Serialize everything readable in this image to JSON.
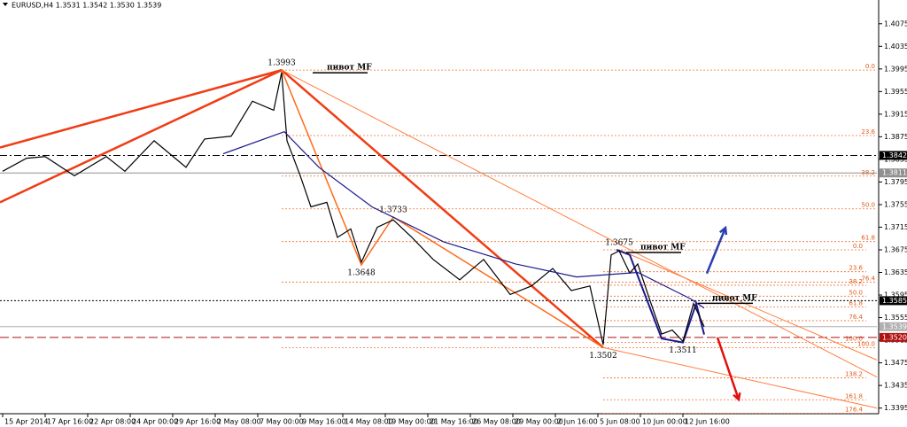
{
  "chart_data": {
    "type": "line",
    "title": "EURUSD,H4 1.3531 1.3542 1.3530 1.3539",
    "xlim": [
      -1,
      329
    ],
    "ylim": [
      1.3385,
      1.4117
    ],
    "xticks": [
      {
        "value": 0,
        "label": "15 Apr 2014"
      },
      {
        "value": 16,
        "label": "17 Apr 16:00"
      },
      {
        "value": 32,
        "label": "22 Apr 08:00"
      },
      {
        "value": 48,
        "label": "24 Apr 00:00"
      },
      {
        "value": 64,
        "label": "29 Apr 16:00"
      },
      {
        "value": 80,
        "label": "2 May 08:00"
      },
      {
        "value": 96,
        "label": "7 May 00:00"
      },
      {
        "value": 112,
        "label": "9 May 16:00"
      },
      {
        "value": 128,
        "label": "14 May 08:00"
      },
      {
        "value": 144,
        "label": "19 May 00:00"
      },
      {
        "value": 160,
        "label": "21 May 16:00"
      },
      {
        "value": 176,
        "label": "26 May 08:00"
      },
      {
        "value": 192,
        "label": "29 May 00:00"
      },
      {
        "value": 208,
        "label": "2 Jun 16:00"
      },
      {
        "value": 224,
        "label": "5 Jun 08:00"
      },
      {
        "value": 240,
        "label": "10 Jun 00:00"
      },
      {
        "value": 256,
        "label": "12 Jun 16:00"
      }
    ],
    "yticks": [
      1.4075,
      1.4035,
      1.3995,
      1.3955,
      1.3915,
      1.3875,
      1.3835,
      1.3795,
      1.3755,
      1.3715,
      1.3675,
      1.3635,
      1.3595,
      1.3555,
      1.3515,
      1.3475,
      1.3435,
      1.3395
    ],
    "series": [
      {
        "color": "#000000",
        "x": [
          0,
          9,
          16,
          27,
          39,
          46,
          57,
          69,
          76,
          86,
          94,
          102,
          105,
          107,
          112,
          116,
          122,
          126,
          131,
          135,
          141,
          147,
          154,
          162,
          172,
          181,
          191,
          199,
          207,
          214,
          221,
          226,
          229,
          232,
          236,
          239,
          244,
          248,
          252,
          256,
          260,
          264
        ],
        "values": [
          1.3814,
          1.3837,
          1.384,
          1.3806,
          1.384,
          1.3814,
          1.3868,
          1.3821,
          1.3871,
          1.3876,
          1.3938,
          1.3922,
          1.3989,
          1.3868,
          1.3806,
          1.3751,
          1.3759,
          1.3697,
          1.3712,
          1.3653,
          1.3715,
          1.3728,
          1.3697,
          1.3658,
          1.3622,
          1.3658,
          1.3596,
          1.3611,
          1.3642,
          1.3603,
          1.3611,
          1.3507,
          1.3666,
          1.3673,
          1.3634,
          1.365,
          1.358,
          1.3526,
          1.3533,
          1.3513,
          1.358,
          1.3539
        ]
      },
      {
        "color": "#1a1a8c",
        "x": [
          83,
          106,
          119,
          139,
          166,
          193,
          216,
          239,
          259,
          264
        ],
        "values": [
          1.3845,
          1.3884,
          1.3821,
          1.3751,
          1.3689,
          1.365,
          1.3627,
          1.3635,
          1.3588,
          1.3572
        ]
      }
    ],
    "trendlines": [
      {
        "color": "#f03c14",
        "width": 2.5,
        "x": [
          -1,
          105
        ],
        "values": [
          1.3759,
          1.3993
        ]
      },
      {
        "color": "#f03c14",
        "width": 2.5,
        "x": [
          -1,
          105
        ],
        "values": [
          1.3856,
          1.3993
        ]
      },
      {
        "color": "#f03c14",
        "width": 2.5,
        "x": [
          105,
          226
        ],
        "values": [
          1.3993,
          1.3502
        ]
      },
      {
        "color": "#ff6a1a",
        "width": 1.5,
        "x": [
          105,
          135,
          147,
          226
        ],
        "values": [
          1.3993,
          1.3648,
          1.3733,
          1.3502
        ]
      },
      {
        "color": "#ff7f3f",
        "width": 1,
        "x": [
          105,
          329
        ],
        "values": [
          1.3993,
          1.345
        ]
      },
      {
        "color": "#ff7f3f",
        "width": 1,
        "x": [
          226,
          329
        ],
        "values": [
          1.3502,
          1.3395
        ]
      },
      {
        "color": "#ff7f3f",
        "width": 1,
        "x": [
          232,
          329
        ],
        "values": [
          1.3675,
          1.348
        ]
      },
      {
        "color": "#1a1a8c",
        "width": 2,
        "x": [
          231,
          236,
          248,
          256,
          261,
          264
        ],
        "values": [
          1.3675,
          1.3666,
          1.3518,
          1.3511,
          1.358,
          1.3525
        ]
      }
    ],
    "arrows": [
      {
        "color": "#2a3fb0",
        "x": [
          265,
          272
        ],
        "values": [
          1.3633,
          1.3714
        ]
      },
      {
        "color": "#e01010",
        "x": [
          269,
          277
        ],
        "values": [
          1.352,
          1.341
        ]
      }
    ],
    "fibs": [
      {
        "start_bar": 105,
        "from": 1.3993,
        "to": 1.3502,
        "levels": [
          {
            "value": 0,
            "label": "0.0"
          },
          23.6,
          38.2,
          {
            "value": 50,
            "label": "50.0"
          },
          61.8,
          76.4,
          {
            "value": 100,
            "label": "100.0"
          }
        ]
      },
      {
        "start_bar": 226,
        "from": 1.3675,
        "to": 1.3511,
        "levels": [
          {
            "value": 0,
            "label": "0.0"
          },
          23.6,
          38.2,
          {
            "value": 50,
            "label": "50.0"
          },
          61.8,
          76.4,
          {
            "value": 100,
            "label": "100.0"
          },
          138.2,
          161.8,
          176.4
        ]
      }
    ],
    "hlines": [
      {
        "value": 1.3842,
        "label": "1.3842",
        "color": "#000000",
        "dash": "8 3 2 3"
      },
      {
        "value": 1.3811,
        "label": "1.3811",
        "color": "#909090",
        "dash": ""
      },
      {
        "value": 1.3585,
        "label": "1.3585",
        "color": "#000000",
        "dash": "2 2"
      },
      {
        "value": 1.3539,
        "label": "1.3539",
        "color": "#b0b0b0",
        "dash": ""
      },
      {
        "value": 1.352,
        "label": "1.3520",
        "color": "#b01010",
        "dash": "10 4"
      }
    ],
    "points": [
      {
        "value": 1.3993,
        "bar": 105,
        "side": "above"
      },
      {
        "value": 1.3733,
        "bar": 147,
        "side": "above"
      },
      {
        "value": 1.3648,
        "bar": 135,
        "side": "below"
      },
      {
        "value": 1.3675,
        "bar": 232,
        "side": "above"
      },
      {
        "value": 1.3502,
        "bar": 226,
        "side": "below"
      },
      {
        "value": 1.3511,
        "bar": 256,
        "side": "below"
      }
    ],
    "pivots": [
      {
        "label": "пивот MF",
        "bar": 122,
        "price": 1.3993
      },
      {
        "label": "пивот MF",
        "bar": 240,
        "price": 1.3675
      },
      {
        "label": "пивот MF",
        "bar": 267,
        "price": 1.3585
      }
    ]
  }
}
